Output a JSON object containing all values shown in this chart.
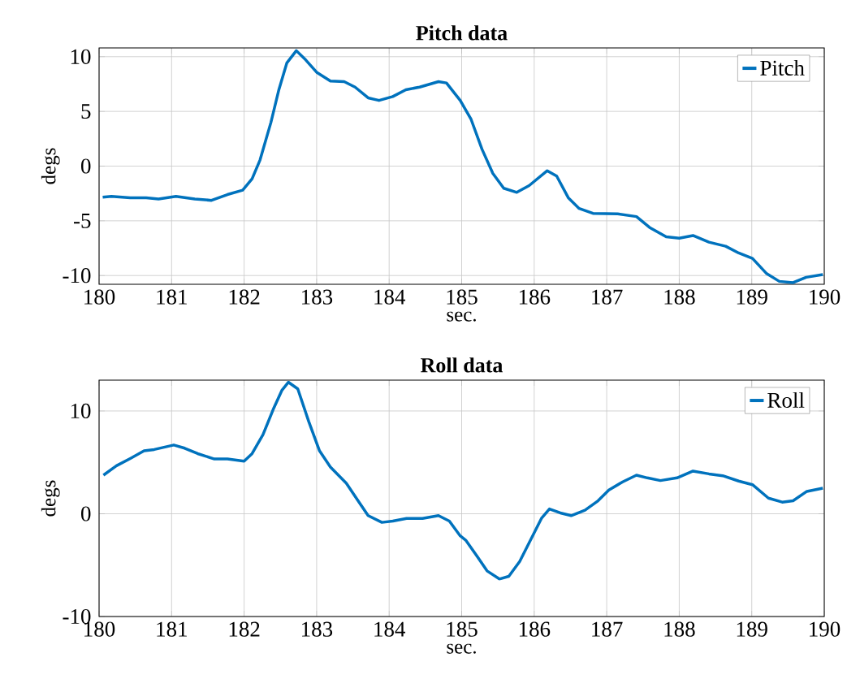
{
  "chart_data": [
    {
      "type": "line",
      "title": "Pitch data",
      "xlabel": "sec.",
      "ylabel": "degs",
      "xlim": [
        180,
        190
      ],
      "ylim": [
        -10.8,
        10.8
      ],
      "xticks": [
        180,
        181,
        182,
        183,
        184,
        185,
        186,
        187,
        188,
        189,
        190
      ],
      "yticks": [
        -10,
        -5,
        0,
        5,
        10
      ],
      "grid": true,
      "legend": "top right",
      "marker": "none",
      "line_style": "solid",
      "x": [
        180.05,
        180.17,
        180.43,
        180.65,
        180.82,
        181.06,
        181.32,
        181.55,
        181.77,
        181.98,
        182.11,
        182.22,
        182.37,
        182.48,
        182.59,
        182.72,
        182.85,
        183.0,
        183.19,
        183.38,
        183.53,
        183.71,
        183.86,
        184.05,
        184.23,
        184.42,
        184.68,
        184.79,
        184.98,
        185.13,
        185.28,
        185.43,
        185.58,
        185.76,
        185.93,
        186.18,
        186.31,
        186.47,
        186.62,
        186.81,
        187.15,
        187.41,
        187.59,
        187.82,
        188.0,
        188.19,
        188.41,
        188.64,
        188.82,
        189.01,
        189.2,
        189.38,
        189.57,
        189.75,
        189.98
      ],
      "series": [
        {
          "name": "Pitch",
          "color": "#0072bd",
          "values": [
            -2.84,
            -2.76,
            -2.9,
            -2.9,
            -3.0,
            -2.76,
            -3.0,
            -3.13,
            -2.6,
            -2.2,
            -1.16,
            0.57,
            4.0,
            7.0,
            9.44,
            10.55,
            9.7,
            8.58,
            7.77,
            7.72,
            7.22,
            6.24,
            6.0,
            6.36,
            6.98,
            7.22,
            7.72,
            7.6,
            6.0,
            4.27,
            1.55,
            -0.67,
            -2.02,
            -2.4,
            -1.78,
            -0.42,
            -0.91,
            -2.89,
            -3.87,
            -4.32,
            -4.36,
            -4.61,
            -5.6,
            -6.46,
            -6.58,
            -6.34,
            -6.95,
            -7.32,
            -7.94,
            -8.43,
            -9.79,
            -10.53,
            -10.65,
            -10.16,
            -9.91
          ]
        }
      ]
    },
    {
      "type": "line",
      "title": "Roll data",
      "xlabel": "sec.",
      "ylabel": "degs",
      "xlim": [
        180,
        190
      ],
      "ylim": [
        -10,
        13
      ],
      "xticks": [
        180,
        181,
        182,
        183,
        184,
        185,
        186,
        187,
        188,
        189,
        190
      ],
      "yticks": [
        -10,
        0,
        10
      ],
      "grid": true,
      "legend": "top right",
      "marker": "none",
      "line_style": "solid",
      "x": [
        180.06,
        180.24,
        180.43,
        180.62,
        180.76,
        181.03,
        181.18,
        181.36,
        181.59,
        181.77,
        182.0,
        182.11,
        182.26,
        182.41,
        182.52,
        182.61,
        182.74,
        182.89,
        183.04,
        183.19,
        183.41,
        183.56,
        183.71,
        183.9,
        184.05,
        184.24,
        184.46,
        184.68,
        184.83,
        184.98,
        185.06,
        185.21,
        185.35,
        185.52,
        185.65,
        185.8,
        185.95,
        186.1,
        186.21,
        186.36,
        186.51,
        186.7,
        186.88,
        187.03,
        187.22,
        187.41,
        187.56,
        187.74,
        187.97,
        188.19,
        188.41,
        188.6,
        188.82,
        189.01,
        189.23,
        189.42,
        189.57,
        189.76,
        189.98
      ],
      "series": [
        {
          "name": "Roll",
          "color": "#0072bd",
          "values": [
            3.75,
            4.67,
            5.38,
            6.12,
            6.25,
            6.69,
            6.38,
            5.85,
            5.33,
            5.33,
            5.12,
            5.85,
            7.69,
            10.3,
            12.0,
            12.8,
            12.15,
            9.0,
            6.12,
            4.54,
            2.97,
            1.39,
            -0.18,
            -0.84,
            -0.71,
            -0.45,
            -0.45,
            -0.18,
            -0.71,
            -2.15,
            -2.6,
            -4.12,
            -5.56,
            -6.35,
            -6.09,
            -4.65,
            -2.55,
            -0.45,
            0.47,
            0.08,
            -0.18,
            0.34,
            1.26,
            2.31,
            3.1,
            3.75,
            3.49,
            3.23,
            3.49,
            4.15,
            3.88,
            3.7,
            3.18,
            2.83,
            1.52,
            1.13,
            1.26,
            2.18,
            2.49
          ]
        }
      ]
    }
  ]
}
